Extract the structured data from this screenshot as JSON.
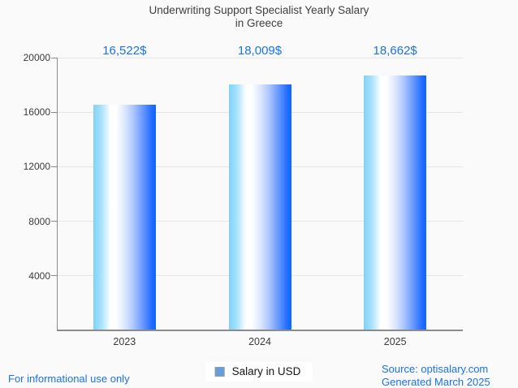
{
  "title": {
    "line1": "Underwriting Support Specialist Yearly Salary",
    "line2": "in Greece"
  },
  "chart_data": {
    "type": "bar",
    "title": "Underwriting Support Specialist Yearly Salary in Greece",
    "categories": [
      "2023",
      "2024",
      "2025"
    ],
    "series": [
      {
        "name": "Salary in USD",
        "values": [
          16522,
          18009,
          18662
        ],
        "value_labels": [
          "16,522$",
          "18,009$",
          "18,662$"
        ]
      }
    ],
    "xlabel": "",
    "ylabel": "",
    "ylim": [
      0,
      20000
    ],
    "yticks": [
      4000,
      8000,
      12000,
      16000,
      20000
    ],
    "grid": true,
    "legend_position": "bottom-center",
    "bar_gradient": [
      "#7fd2f8",
      "#ffffff",
      "#0e64ff"
    ],
    "value_label_color": "#1a73e8"
  },
  "legend": {
    "label": "Salary in USD",
    "swatch_color": "#62a0dc"
  },
  "footer": {
    "left": "For informational use only",
    "source": "Source: optisalary.com",
    "generated": "Generated March 2025"
  },
  "colors": {
    "background": "#fafafa",
    "title_text": "#3f3f3f",
    "axis_text": "#3b3b3b",
    "gridline": "#e6e6e6",
    "axis_line": "#8a8a8a",
    "accent_blue": "#1a73e8"
  }
}
